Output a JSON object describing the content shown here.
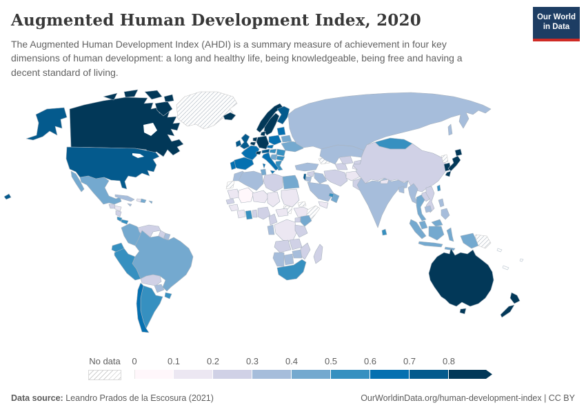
{
  "header": {
    "title": "Augmented Human Development Index, 2020",
    "subtitle": "The Augmented Human Development Index (AHDI) is a summary measure of achievement in four key dimensions of human development: a long and healthy life, being knowledgeable, being free and having a decent standard of living.",
    "logo": {
      "line1": "Our World",
      "line2": "in Data",
      "bg_color": "#1d3d63",
      "accent_color": "#cf2b25"
    }
  },
  "footer": {
    "source_label": "Data source:",
    "source_value": " Leandro Prados de la Escosura (2021)",
    "rights_text": "OurWorldinData.org/human-development-index | CC BY"
  },
  "chart_data": {
    "type": "choropleth_map",
    "title": "Augmented Human Development Index, 2020",
    "metric": "Augmented Human Development Index (AHDI)",
    "year": 2020,
    "ocean_color": "#ffffff",
    "border_color": "#a8b2bd",
    "legend": {
      "no_data_label": "No data",
      "tick_labels": [
        "0",
        "0.1",
        "0.2",
        "0.3",
        "0.4",
        "0.5",
        "0.6",
        "0.7",
        "0.8"
      ],
      "open_ended_arrow": true,
      "bins": [
        {
          "range": "0–0.1",
          "color": "#fff7fb"
        },
        {
          "range": "0.1–0.2",
          "color": "#ece7f2"
        },
        {
          "range": "0.2–0.3",
          "color": "#d0d1e6"
        },
        {
          "range": "0.3–0.4",
          "color": "#a6bddb"
        },
        {
          "range": "0.4–0.5",
          "color": "#74a9cf"
        },
        {
          "range": "0.5–0.6",
          "color": "#3690c0"
        },
        {
          "range": "0.6–0.7",
          "color": "#0570b0"
        },
        {
          "range": "0.7–0.8",
          "color": "#045a8d"
        },
        {
          "range": "0.8+",
          "color": "#023858"
        }
      ]
    },
    "region_bins": {
      "hawaii": 7,
      "alaska": 7,
      "united-states": 7,
      "canada": 8,
      "canadian-arctic-islands": 8,
      "greenland": "no-data",
      "mexico": 4,
      "guatemala": 2,
      "honduras": 1,
      "nicaragua": 2,
      "costa-rica": 5,
      "panama": 5,
      "cuba": 3,
      "jamaica": 3,
      "haiti": 1,
      "dominican-republic": 4,
      "puerto-rico": 4,
      "colombia": 4,
      "venezuela": 2,
      "guyana": 2,
      "suriname": 3,
      "ecuador": 5,
      "peru": 5,
      "brazil": 4,
      "bolivia": 2,
      "paraguay": 3,
      "uruguay": 5,
      "argentina": 5,
      "chile": 6,
      "iceland": 8,
      "norway": 8,
      "sweden": 8,
      "finland": 7,
      "denmark": 8,
      "united-kingdom": 7,
      "ireland": 7,
      "netherlands": 8,
      "belgium": 8,
      "germany": 8,
      "france": 6,
      "switzerland": 8,
      "austria": 7,
      "czechia": 6,
      "poland": 6,
      "baltic-states": 6,
      "belarus": 4,
      "ukraine": 4,
      "hungary": 5,
      "romania": 5,
      "serbia-balkans": 4,
      "bulgaria": 5,
      "greece": 5,
      "italy": 6,
      "spain": 6,
      "portugal": 6,
      "morocco": 3,
      "western-sahara": "no-data",
      "algeria": 3,
      "tunisia": 4,
      "libya": 2,
      "egypt": 4,
      "mauritania": 1,
      "mali": 0,
      "niger": 1,
      "chad": 1,
      "sudan": 1,
      "south-sudan": "no-data",
      "eritrea": "no-data",
      "ethiopia": 1,
      "somalia": "no-data",
      "senegal": 2,
      "guinea": 1,
      "ivory-coast": 1,
      "ghana": 5,
      "togo-benin": 2,
      "nigeria": 2,
      "cameroon": 2,
      "central-african-republic": 1,
      "dr-congo": 1,
      "congo-gabon": 3,
      "uganda": 2,
      "kenya": 4,
      "tanzania": 2,
      "angola": 2,
      "zambia": 2,
      "zimbabwe": 3,
      "mozambique": 2,
      "botswana": 3,
      "namibia": 3,
      "south-africa": 5,
      "madagascar": 2,
      "turkey": 3,
      "caucasus": "no-data",
      "syria": 2,
      "israel": 7,
      "jordan": 3,
      "iraq": 3,
      "saudi-arabia": 3,
      "yemen": 1,
      "oman": 4,
      "united-arab-emirates": 5,
      "iran": 2,
      "afghanistan": 1,
      "pakistan": 2,
      "turkmenistan": 2,
      "uzbekistan": 2,
      "kazakhstan": 3,
      "kyrgyzstan": 2,
      "tajikistan": 1,
      "russia": 3,
      "mongolia": 5,
      "china": 2,
      "north-korea": "no-data",
      "south-korea": 8,
      "japan": 8,
      "taiwan": 5,
      "india": 3,
      "nepal": 1,
      "bangladesh": 3,
      "sri-lanka": 5,
      "myanmar": 3,
      "thailand": 4,
      "laos": 2,
      "vietnam": 2,
      "cambodia": 3,
      "malaysia": 4,
      "indonesia": 4,
      "papua-new-guinea": "no-data",
      "philippines": 3,
      "australia": 8,
      "new-zealand": 8
    }
  }
}
